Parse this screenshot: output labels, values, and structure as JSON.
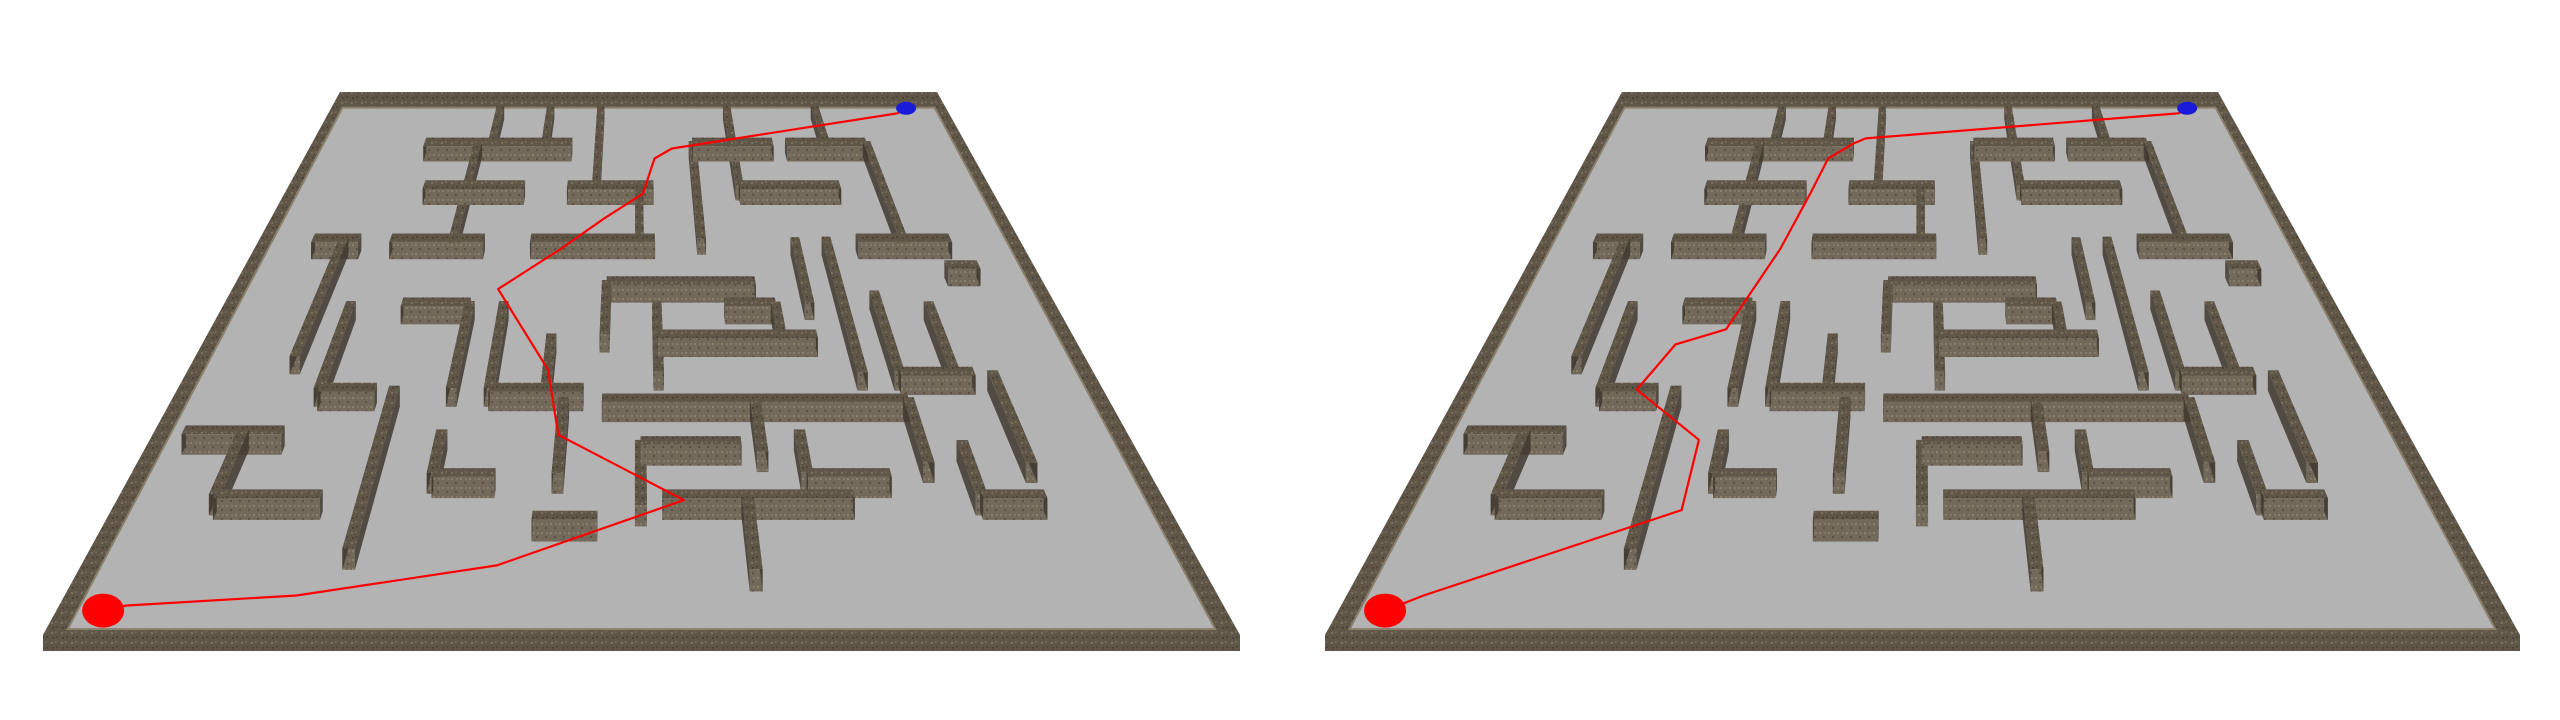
{
  "colors": {
    "floor": "#b3b3b3",
    "wall_top": "#5d5346",
    "wall_side": "#6b6152",
    "wall_front": "#7c725f",
    "wall_dark": "#3f382f",
    "path": "#ff0000",
    "start_marker": "#ff0000",
    "goal_marker": "#1a1adb",
    "background": "#ffffff"
  },
  "boards": [
    {
      "id": "left",
      "path": [
        [
          0.0,
          1.0
        ],
        [
          0.02,
          0.99
        ],
        [
          0.18,
          0.97
        ],
        [
          0.37,
          0.91
        ],
        [
          0.56,
          0.78
        ],
        [
          0.42,
          0.65
        ],
        [
          0.4,
          0.52
        ],
        [
          0.32,
          0.36
        ],
        [
          0.4,
          0.28
        ],
        [
          0.46,
          0.22
        ],
        [
          0.52,
          0.17
        ],
        [
          0.54,
          0.1
        ],
        [
          0.57,
          0.08
        ],
        [
          0.98,
          0.01
        ],
        [
          1.0,
          0.0
        ]
      ]
    },
    {
      "id": "right",
      "path": [
        [
          0.0,
          1.0
        ],
        [
          0.03,
          0.97
        ],
        [
          0.26,
          0.8
        ],
        [
          0.26,
          0.66
        ],
        [
          0.17,
          0.56
        ],
        [
          0.2,
          0.47
        ],
        [
          0.26,
          0.44
        ],
        [
          0.31,
          0.28
        ],
        [
          0.34,
          0.17
        ],
        [
          0.36,
          0.1
        ],
        [
          0.4,
          0.07
        ],
        [
          0.42,
          0.06
        ],
        [
          0.98,
          0.01
        ],
        [
          1.0,
          0.0
        ]
      ]
    }
  ]
}
